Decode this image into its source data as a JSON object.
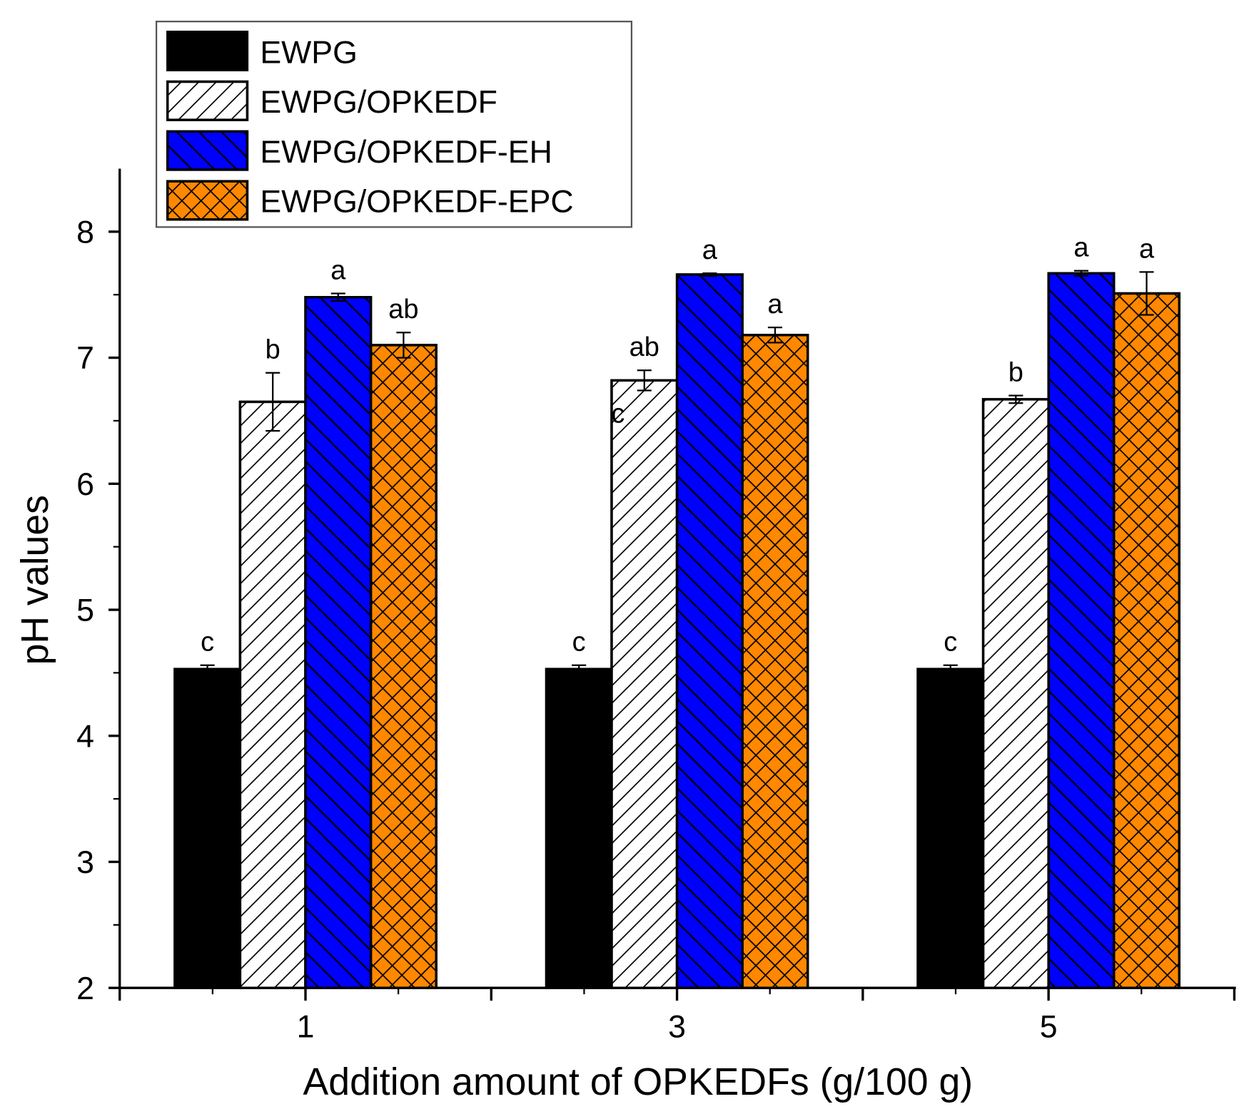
{
  "chart_data": {
    "type": "bar",
    "title": "",
    "xlabel": "Addition amount of OPKEDFs (g/100 g)",
    "ylabel": "pH values",
    "categories": [
      "1",
      "3",
      "5"
    ],
    "ylim": [
      2,
      8.5
    ],
    "yticks": [
      "2",
      "3",
      "4",
      "5",
      "6",
      "7",
      "8"
    ],
    "grid": false,
    "legend_position": "top-left",
    "series": [
      {
        "name": "EWPG",
        "fill": "#000000",
        "pattern": "solid",
        "values": [
          4.53,
          4.53,
          4.53
        ],
        "errors": [
          0.03,
          0.03,
          0.03
        ],
        "letters": [
          "c",
          "c",
          "c"
        ]
      },
      {
        "name": "EWPG/OPKEDF",
        "fill": "#ffffff",
        "pattern": "forward-diagonal",
        "values": [
          6.65,
          6.82,
          6.67
        ],
        "errors": [
          0.23,
          0.08,
          0.03
        ],
        "letters": [
          "b",
          "ab",
          "b"
        ]
      },
      {
        "name": "EWPG/OPKEDF-EH",
        "fill": "#0000ff",
        "pattern": "back-diagonal",
        "values": [
          7.48,
          7.66,
          7.67
        ],
        "errors": [
          0.03,
          0.01,
          0.02
        ],
        "letters": [
          "a",
          "a",
          "a"
        ]
      },
      {
        "name": "EWPG/OPKEDF-EPC",
        "fill": "#ff8800",
        "pattern": "crosshatch",
        "values": [
          7.1,
          7.18,
          7.51
        ],
        "errors": [
          0.1,
          0.06,
          0.17
        ],
        "letters": [
          "ab",
          "a",
          "a"
        ]
      }
    ],
    "annotations": [
      {
        "text": "c",
        "category": "3",
        "series": "EWPG/OPKEDF",
        "y": 6.55
      }
    ]
  }
}
